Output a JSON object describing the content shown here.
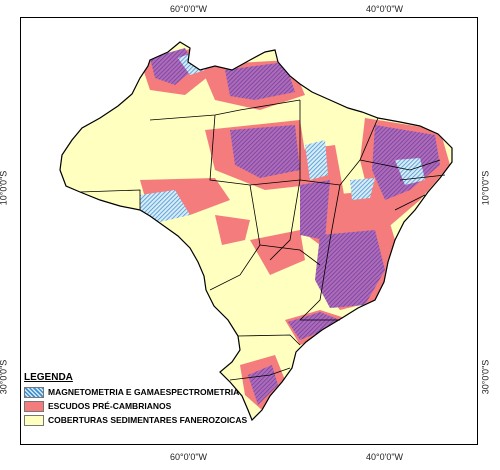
{
  "coordinates": {
    "top": [
      "60°0'0\"W",
      "40°0'0\"W"
    ],
    "bottom": [
      "60°0'0\"W",
      "40°0'0\"W"
    ],
    "left": [
      "10°0'0\"S",
      "30°0'0\"S"
    ],
    "right": [
      "10°0'0\"S",
      "30°0'0\"S"
    ]
  },
  "legend": {
    "title": "LEGENDA",
    "items": [
      {
        "label": "MAGNETOMETRIA E GAMAESPECTROMETRIA",
        "color": "#3f8fd0"
      },
      {
        "label": "ESCUDOS PRÉ-CAMBRIANOS",
        "color": "#f47c7c"
      },
      {
        "label": "COBERTURAS SEDIMENTARES FANEROZOICAS",
        "color": "#ffffc0"
      }
    ]
  },
  "colors": {
    "overlap": "#9b5ba6",
    "state_borders": "#000000",
    "rivers": "#ffffff"
  }
}
